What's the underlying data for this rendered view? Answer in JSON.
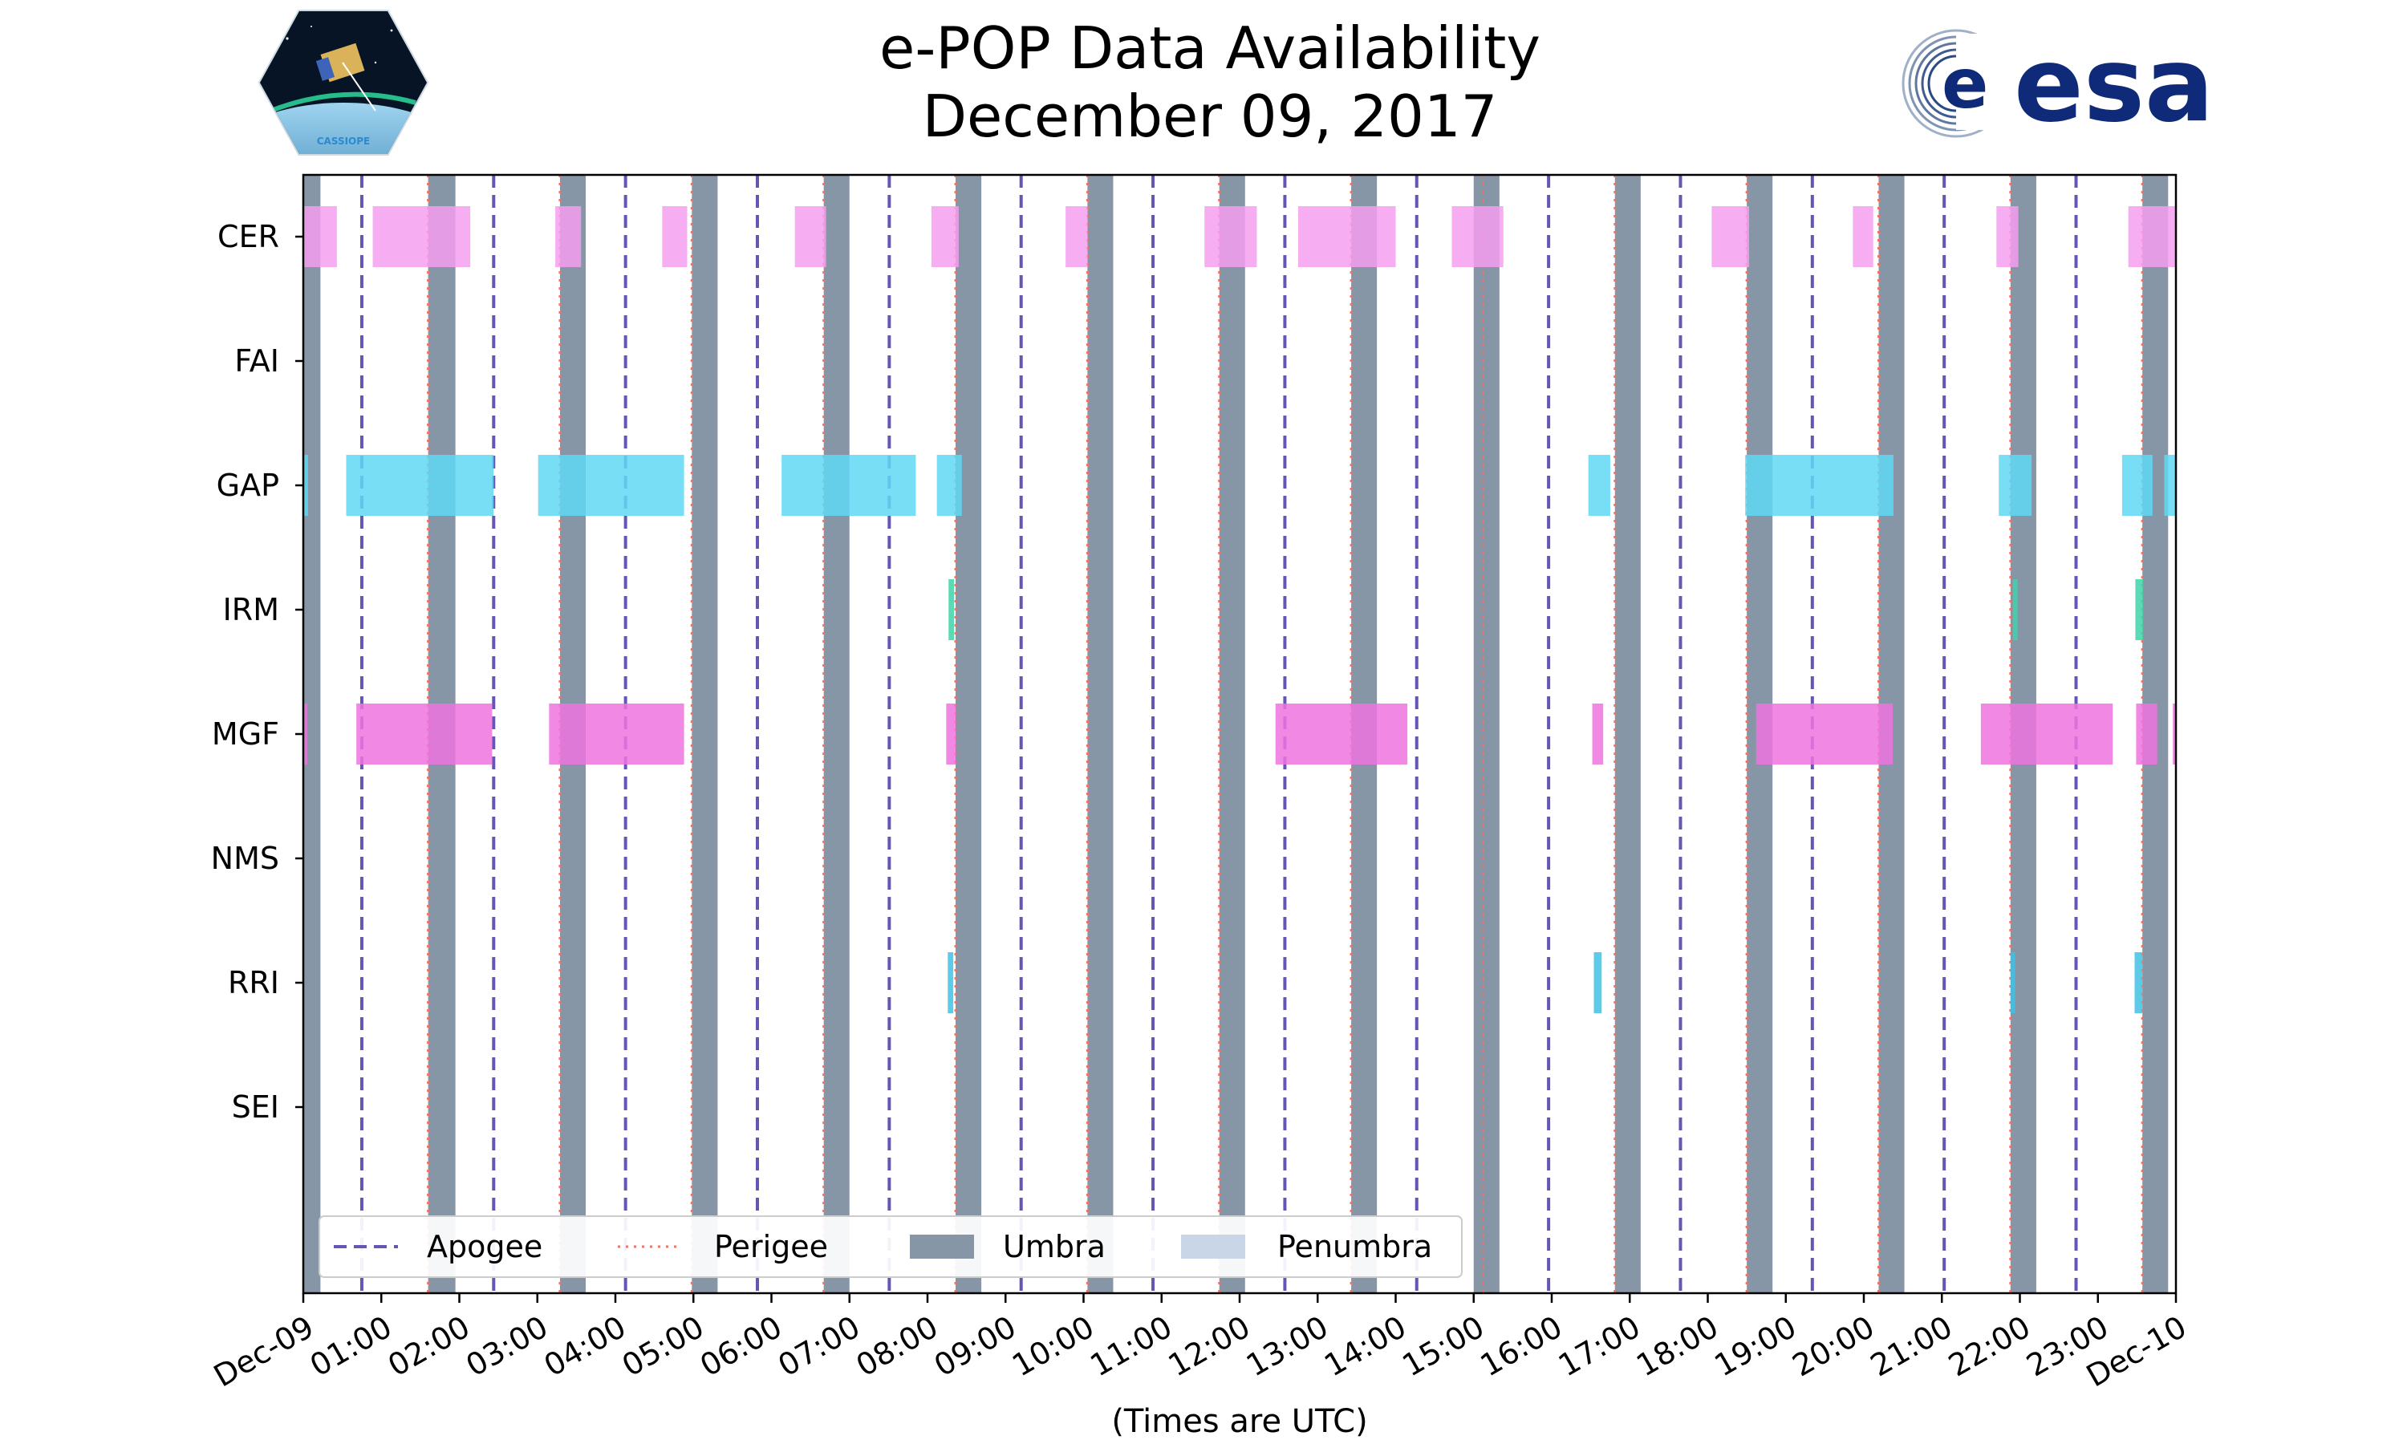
{
  "chart_data": {
    "type": "timeline",
    "title": "e-POP Data Availability",
    "subtitle": "December 09, 2017",
    "xlabel": "(Times are UTC)",
    "x_range_hours": [
      0,
      24
    ],
    "x_tick_labels": [
      "Dec-09",
      "01:00",
      "02:00",
      "03:00",
      "04:00",
      "05:00",
      "06:00",
      "07:00",
      "08:00",
      "09:00",
      "10:00",
      "11:00",
      "12:00",
      "13:00",
      "14:00",
      "15:00",
      "16:00",
      "17:00",
      "18:00",
      "19:00",
      "20:00",
      "21:00",
      "22:00",
      "23:00",
      "Dec-10"
    ],
    "instruments": [
      "CER",
      "FAI",
      "GAP",
      "IRM",
      "MGF",
      "NMS",
      "RRI",
      "SEI"
    ],
    "legend": {
      "location": "lower-left",
      "entries": [
        {
          "label": "Apogee",
          "style": "dashed",
          "color": "#6655b3"
        },
        {
          "label": "Perigee",
          "style": "dotted",
          "color": "#e8766a"
        },
        {
          "label": "Umbra",
          "style": "patch",
          "color": "#8796a6"
        },
        {
          "label": "Penumbra",
          "style": "patch",
          "color": "#c8d6e8"
        }
      ]
    },
    "apogee_hours": [
      0.75,
      2.44,
      4.13,
      5.82,
      7.51,
      9.2,
      10.89,
      12.58,
      14.27,
      15.96,
      17.65,
      19.34,
      21.03,
      22.72
    ],
    "perigee_hours": [
      1.6,
      3.29,
      4.98,
      6.67,
      8.36,
      10.05,
      11.74,
      13.43,
      15.12,
      16.81,
      18.5,
      20.19,
      21.88,
      23.57
    ],
    "umbra_hours": [
      [
        0,
        0.22
      ],
      [
        1.6,
        1.95
      ],
      [
        3.29,
        3.62
      ],
      [
        4.98,
        5.31
      ],
      [
        6.67,
        7.0
      ],
      [
        8.36,
        8.69
      ],
      [
        10.05,
        10.38
      ],
      [
        11.74,
        12.07
      ],
      [
        13.43,
        13.76
      ],
      [
        15.0,
        15.33
      ],
      [
        16.81,
        17.14
      ],
      [
        18.5,
        18.83
      ],
      [
        20.19,
        20.52
      ],
      [
        21.88,
        22.21
      ],
      [
        23.57,
        23.9
      ]
    ],
    "availability": {
      "CER": {
        "color": "#f59ff0",
        "intervals": [
          [
            0,
            0.43
          ],
          [
            0.89,
            2.14
          ],
          [
            3.23,
            3.56
          ],
          [
            4.6,
            4.92
          ],
          [
            6.3,
            6.7
          ],
          [
            8.05,
            8.4
          ],
          [
            9.77,
            10.05
          ],
          [
            11.55,
            12.22
          ],
          [
            12.75,
            14.0
          ],
          [
            14.72,
            15.38
          ],
          [
            18.05,
            18.53
          ],
          [
            19.86,
            20.12
          ],
          [
            21.7,
            21.98
          ],
          [
            23.39,
            24.0
          ]
        ]
      },
      "FAI": {
        "color": "#9a9a9a",
        "intervals": []
      },
      "GAP": {
        "color": "#5fd8f5",
        "intervals": [
          [
            0,
            0.06
          ],
          [
            0.55,
            2.44
          ],
          [
            3.01,
            4.88
          ],
          [
            6.13,
            7.85
          ],
          [
            8.12,
            8.44
          ],
          [
            16.47,
            16.75
          ],
          [
            18.48,
            20.38
          ],
          [
            21.73,
            22.15
          ],
          [
            23.31,
            23.7
          ],
          [
            23.85,
            24.0
          ]
        ]
      },
      "IRM": {
        "color": "#3fd3a8",
        "intervals": [
          [
            8.27,
            8.34
          ],
          [
            21.91,
            21.97
          ],
          [
            23.48,
            23.58
          ]
        ]
      },
      "MGF": {
        "color": "#ee74df",
        "intervals": [
          [
            0,
            0.05
          ],
          [
            0.68,
            2.42
          ],
          [
            3.15,
            4.88
          ],
          [
            8.24,
            8.36
          ],
          [
            12.46,
            14.15
          ],
          [
            16.52,
            16.66
          ],
          [
            18.62,
            20.37
          ],
          [
            21.5,
            23.19
          ],
          [
            23.49,
            23.76
          ],
          [
            23.96,
            24.0
          ]
        ]
      },
      "NMS": {
        "color": "#9a9a9a",
        "intervals": []
      },
      "RRI": {
        "color": "#3fc2e3",
        "intervals": [
          [
            8.26,
            8.33
          ],
          [
            16.54,
            16.64
          ],
          [
            21.88,
            21.94
          ],
          [
            23.47,
            23.57
          ]
        ]
      },
      "SEI": {
        "color": "#9a9a9a",
        "intervals": []
      }
    }
  },
  "logos": {
    "cassiope_icon": "satellite-badge-icon",
    "cassiope_text": "CASSIOPE",
    "esa_icon": "esa-swirl-icon",
    "esa_text": "esa",
    "esa_color": "#0f2a78"
  }
}
